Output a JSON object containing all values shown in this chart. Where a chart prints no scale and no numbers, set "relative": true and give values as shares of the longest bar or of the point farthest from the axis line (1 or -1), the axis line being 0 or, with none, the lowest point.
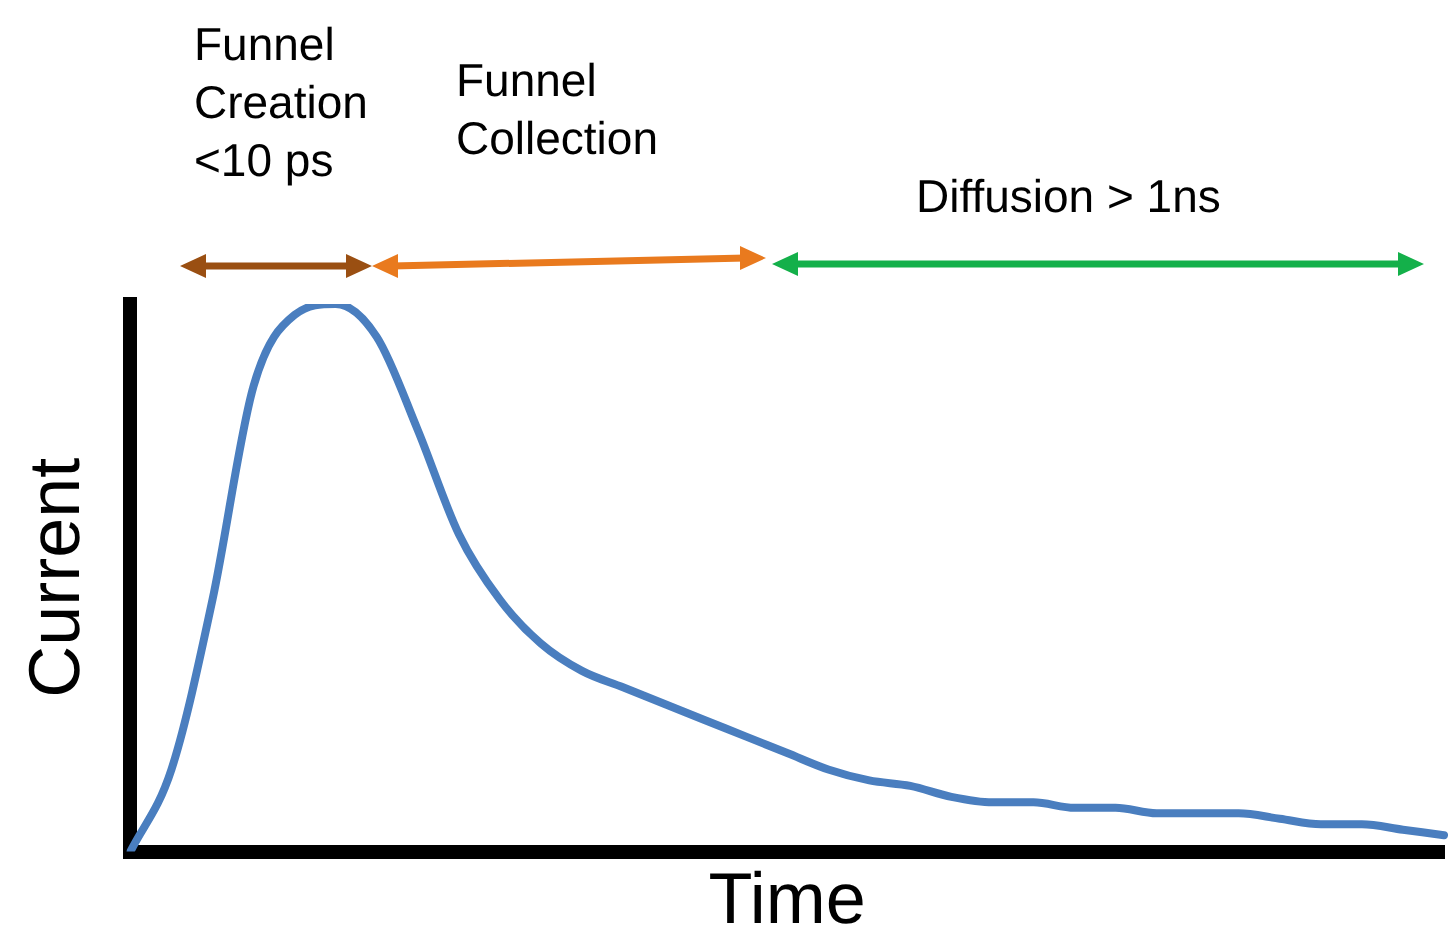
{
  "chart_data": {
    "type": "line",
    "relative": true,
    "xlabel": "Time",
    "ylabel": "Current",
    "grid": false,
    "legend": false,
    "marker": "none",
    "line_style": "solid",
    "categories": [
      null,
      null,
      null,
      null,
      null,
      null,
      null,
      null,
      null,
      null,
      null,
      null,
      null,
      null,
      null,
      null,
      null,
      null,
      null,
      null,
      null,
      null,
      null,
      null,
      null,
      null,
      null,
      null,
      null,
      null,
      null,
      null,
      null
    ],
    "series": [
      {
        "color": "#4a7ebf",
        "values": [
          0,
          0.15,
          0.46,
          0.85,
          0.98,
          1,
          0.94,
          0.77,
          0.58,
          0.46,
          0.38,
          0.33,
          0.3,
          0.27,
          0.24,
          0.21,
          0.18,
          0.15,
          0.13,
          0.12,
          0.1,
          0.09,
          0.09,
          0.08,
          0.08,
          0.07,
          0.07,
          0.07,
          0.06,
          0.05,
          0.05,
          0.04,
          0.03
        ]
      }
    ],
    "annotations": [
      "Funnel Creation <10 ps",
      "Funnel Collection",
      "Diffusion > 1ns"
    ]
  }
}
